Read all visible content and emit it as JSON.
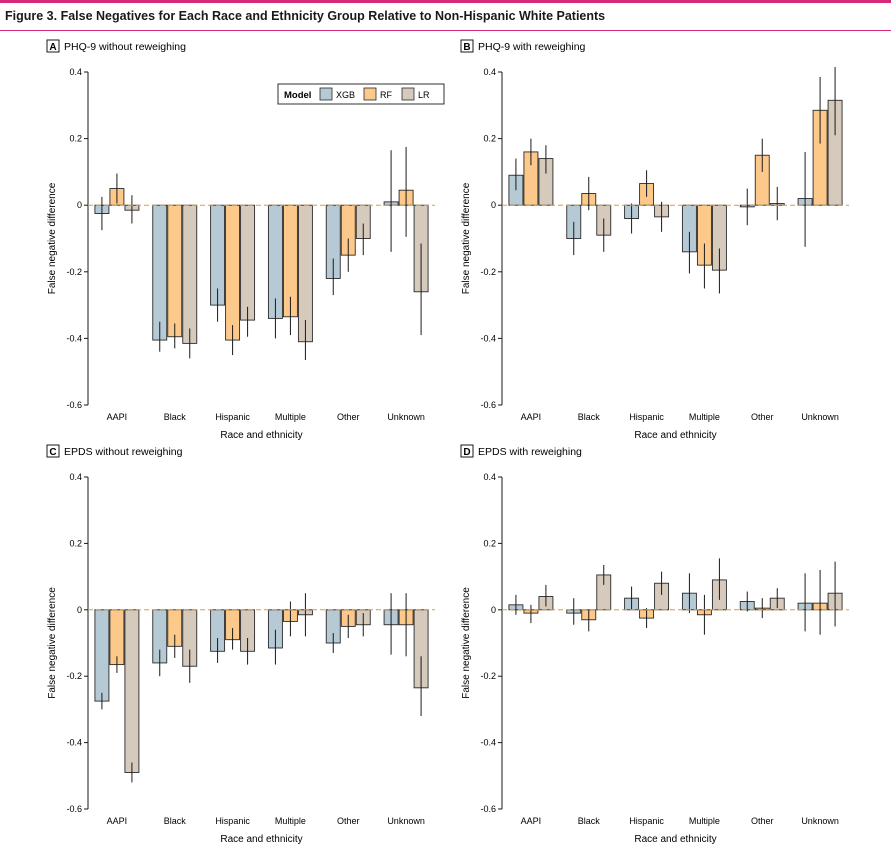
{
  "figure_title": "Figure 3. False Negatives for Each Race and Ethnicity Group Relative to Non-Hispanic White Patients",
  "colors": {
    "XGB": "#b6cad5",
    "RF": "#fdc98a",
    "LR": "#d6cabc",
    "zero_line": "#e09a3c",
    "title_rule": "#d8287a"
  },
  "legend": {
    "title": "Model",
    "entries": [
      "XGB",
      "RF",
      "LR"
    ]
  },
  "chart_data": [
    {
      "type": "bar",
      "panel": "A",
      "title": "PHQ-9 without reweighing",
      "xlabel": "Race and ethnicity",
      "ylabel": "False negative difference",
      "ylim": [
        -0.6,
        0.4
      ],
      "yticks": [
        "0.4",
        "0.2",
        "0",
        "-0.2",
        "-0.4",
        "-0.6"
      ],
      "categories": [
        "AAPI",
        "Black",
        "Hispanic",
        "Multiple",
        "Other",
        "Unknown"
      ],
      "series": [
        {
          "name": "XGB",
          "values": [
            -0.025,
            -0.405,
            -0.3,
            -0.34,
            -0.22,
            0.01
          ],
          "ci": [
            [
              -0.075,
              0.025
            ],
            [
              -0.44,
              -0.35
            ],
            [
              -0.35,
              -0.25
            ],
            [
              -0.4,
              -0.28
            ],
            [
              -0.27,
              -0.16
            ],
            [
              -0.14,
              0.165
            ]
          ]
        },
        {
          "name": "RF",
          "values": [
            0.05,
            -0.395,
            -0.405,
            -0.335,
            -0.15,
            0.045
          ],
          "ci": [
            [
              0.005,
              0.095
            ],
            [
              -0.43,
              -0.355
            ],
            [
              -0.45,
              -0.36
            ],
            [
              -0.39,
              -0.275
            ],
            [
              -0.2,
              -0.1
            ],
            [
              -0.095,
              0.175
            ]
          ]
        },
        {
          "name": "LR",
          "values": [
            -0.015,
            -0.415,
            -0.345,
            -0.41,
            -0.1,
            -0.26
          ],
          "ci": [
            [
              -0.055,
              0.03
            ],
            [
              -0.46,
              -0.37
            ],
            [
              -0.395,
              -0.305
            ],
            [
              -0.465,
              -0.345
            ],
            [
              -0.15,
              -0.055
            ],
            [
              -0.39,
              -0.115
            ]
          ]
        }
      ]
    },
    {
      "type": "bar",
      "panel": "B",
      "title": "PHQ-9 with reweighing",
      "xlabel": "Race and ethnicity",
      "ylabel": "False negative difference",
      "ylim": [
        -0.6,
        0.4
      ],
      "yticks": [
        "0.4",
        "0.2",
        "0",
        "-0.2",
        "-0.4",
        "-0.6"
      ],
      "categories": [
        "AAPI",
        "Black",
        "Hispanic",
        "Multiple",
        "Other",
        "Unknown"
      ],
      "series": [
        {
          "name": "XGB",
          "values": [
            0.09,
            -0.1,
            -0.04,
            -0.14,
            -0.005,
            0.02
          ],
          "ci": [
            [
              0.045,
              0.14
            ],
            [
              -0.15,
              -0.05
            ],
            [
              -0.085,
              0.005
            ],
            [
              -0.205,
              -0.08
            ],
            [
              -0.06,
              0.05
            ],
            [
              -0.125,
              0.16
            ]
          ]
        },
        {
          "name": "RF",
          "values": [
            0.16,
            0.035,
            0.065,
            -0.18,
            0.15,
            0.285
          ],
          "ci": [
            [
              0.12,
              0.2
            ],
            [
              -0.015,
              0.085
            ],
            [
              0.025,
              0.105
            ],
            [
              -0.25,
              -0.115
            ],
            [
              0.1,
              0.2
            ],
            [
              0.185,
              0.385
            ]
          ]
        },
        {
          "name": "LR",
          "values": [
            0.14,
            -0.09,
            -0.035,
            -0.195,
            0.005,
            0.315
          ],
          "ci": [
            [
              0.095,
              0.18
            ],
            [
              -0.14,
              -0.04
            ],
            [
              -0.08,
              0.01
            ],
            [
              -0.265,
              -0.13
            ],
            [
              -0.045,
              0.055
            ],
            [
              0.21,
              0.415
            ]
          ]
        }
      ]
    },
    {
      "type": "bar",
      "panel": "C",
      "title": "EPDS without reweighing",
      "xlabel": "Race and ethnicity",
      "ylabel": "False negative difference",
      "ylim": [
        -0.6,
        0.4
      ],
      "yticks": [
        "0.4",
        "0.2",
        "0",
        "-0.2",
        "-0.4",
        "-0.6"
      ],
      "categories": [
        "AAPI",
        "Black",
        "Hispanic",
        "Multiple",
        "Other",
        "Unknown"
      ],
      "series": [
        {
          "name": "XGB",
          "values": [
            -0.275,
            -0.16,
            -0.125,
            -0.115,
            -0.1,
            -0.045
          ],
          "ci": [
            [
              -0.3,
              -0.25
            ],
            [
              -0.2,
              -0.12
            ],
            [
              -0.16,
              -0.085
            ],
            [
              -0.165,
              -0.06
            ],
            [
              -0.13,
              -0.07
            ],
            [
              -0.135,
              0.05
            ]
          ]
        },
        {
          "name": "RF",
          "values": [
            -0.165,
            -0.11,
            -0.09,
            -0.035,
            -0.05,
            -0.045
          ],
          "ci": [
            [
              -0.19,
              -0.14
            ],
            [
              -0.145,
              -0.075
            ],
            [
              -0.12,
              -0.055
            ],
            [
              -0.08,
              0.025
            ],
            [
              -0.085,
              -0.015
            ],
            [
              -0.14,
              0.05
            ]
          ]
        },
        {
          "name": "LR",
          "values": [
            -0.49,
            -0.17,
            -0.125,
            -0.015,
            -0.045,
            -0.235
          ],
          "ci": [
            [
              -0.52,
              -0.46
            ],
            [
              -0.22,
              -0.12
            ],
            [
              -0.165,
              -0.085
            ],
            [
              -0.08,
              0.05
            ],
            [
              -0.08,
              -0.01
            ],
            [
              -0.32,
              -0.14
            ]
          ]
        }
      ]
    },
    {
      "type": "bar",
      "panel": "D",
      "title": "EPDS with reweighing",
      "xlabel": "Race and ethnicity",
      "ylabel": "False negative difference",
      "ylim": [
        -0.6,
        0.4
      ],
      "yticks": [
        "0.4",
        "0.2",
        "0",
        "-0.2",
        "-0.4",
        "-0.6"
      ],
      "categories": [
        "AAPI",
        "Black",
        "Hispanic",
        "Multiple",
        "Other",
        "Unknown"
      ],
      "series": [
        {
          "name": "XGB",
          "values": [
            0.015,
            -0.01,
            0.035,
            0.05,
            0.025,
            0.02
          ],
          "ci": [
            [
              -0.015,
              0.045
            ],
            [
              -0.045,
              0.035
            ],
            [
              0.0,
              0.07
            ],
            [
              -0.01,
              0.11
            ],
            [
              -0.005,
              0.055
            ],
            [
              -0.065,
              0.11
            ]
          ]
        },
        {
          "name": "RF",
          "values": [
            -0.01,
            -0.03,
            -0.025,
            -0.015,
            0.005,
            0.02
          ],
          "ci": [
            [
              -0.04,
              0.015
            ],
            [
              -0.065,
              0.0
            ],
            [
              -0.055,
              0.005
            ],
            [
              -0.075,
              0.045
            ],
            [
              -0.025,
              0.035
            ],
            [
              -0.075,
              0.12
            ]
          ]
        },
        {
          "name": "LR",
          "values": [
            0.04,
            0.105,
            0.08,
            0.09,
            0.035,
            0.05
          ],
          "ci": [
            [
              0.01,
              0.075
            ],
            [
              0.075,
              0.135
            ],
            [
              0.045,
              0.115
            ],
            [
              0.03,
              0.155
            ],
            [
              0.005,
              0.065
            ],
            [
              -0.05,
              0.145
            ]
          ]
        }
      ]
    }
  ]
}
